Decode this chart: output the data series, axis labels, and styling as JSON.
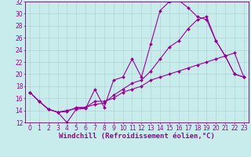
{
  "xlabel": "Windchill (Refroidissement éolien,°C)",
  "ylabel": "",
  "bg_color": "#c8ecec",
  "line_color": "#990099",
  "grid_color": "#aacccc",
  "xlim": [
    -0.5,
    23.5
  ],
  "ylim": [
    12,
    32
  ],
  "xtick_labels": [
    "0",
    "1",
    "2",
    "3",
    "4",
    "5",
    "6",
    "7",
    "8",
    "9",
    "10",
    "11",
    "12",
    "13",
    "14",
    "15",
    "16",
    "17",
    "18",
    "19",
    "20",
    "21",
    "22",
    "23"
  ],
  "ytick_labels": [
    "12",
    "14",
    "16",
    "18",
    "20",
    "22",
    "24",
    "26",
    "28",
    "30",
    "32"
  ],
  "ytick_vals": [
    12,
    14,
    16,
    18,
    20,
    22,
    24,
    26,
    28,
    30,
    32
  ],
  "series": [
    [
      17.0,
      15.5,
      14.2,
      13.7,
      12.0,
      14.2,
      14.3,
      17.5,
      14.5,
      19.0,
      19.5,
      22.5,
      19.5,
      25.0,
      30.5,
      32.0,
      32.2,
      31.0,
      29.5,
      29.0,
      25.5,
      23.0,
      20.0,
      19.5
    ],
    [
      17.0,
      15.5,
      14.2,
      13.7,
      13.8,
      14.5,
      14.5,
      15.5,
      15.5,
      16.0,
      17.0,
      17.5,
      18.0,
      19.0,
      19.5,
      20.0,
      20.5,
      21.0,
      21.5,
      22.0,
      22.5,
      23.0,
      23.5,
      19.5
    ],
    [
      17.0,
      15.5,
      14.2,
      13.7,
      14.0,
      14.3,
      14.5,
      15.0,
      15.2,
      16.5,
      17.5,
      18.5,
      19.0,
      20.5,
      22.5,
      24.5,
      25.5,
      27.5,
      29.0,
      29.5,
      25.5,
      23.0,
      20.0,
      19.5
    ]
  ],
  "marker": "D",
  "markersize": 2.0,
  "linewidth": 0.8,
  "xlabel_fontsize": 6.5,
  "tick_fontsize": 5.5,
  "xlabel_color": "#990099",
  "tick_color": "#990099",
  "axis_color": "#660066",
  "spine_linewidth": 0.6
}
